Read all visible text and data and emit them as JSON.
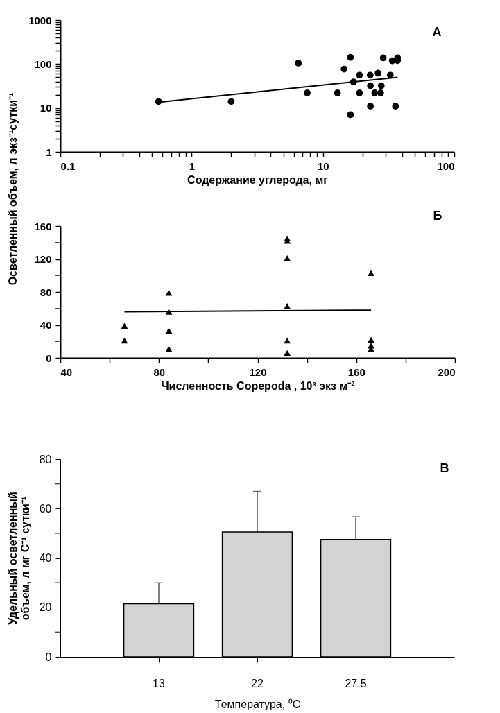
{
  "chart_data": [
    {
      "type": "scatter",
      "xlabel": "Содержание углерода, мг",
      "ylabel": "Осветленный объем, л экз⁻¹сутки⁻¹",
      "annotations": [
        "А"
      ],
      "log": "xy",
      "marker": "circle",
      "xlim": [
        0.1,
        100
      ],
      "ylim": [
        1,
        1000
      ],
      "xticks": [
        0.1,
        {
          "value": 0.2,
          "label": null
        },
        {
          "value": 0.3,
          "label": null
        },
        {
          "value": 0.4,
          "label": null
        },
        {
          "value": 0.5,
          "label": null
        },
        {
          "value": 0.6,
          "label": null
        },
        {
          "value": 0.7,
          "label": null
        },
        {
          "value": 0.8,
          "label": null
        },
        {
          "value": 0.9,
          "label": null
        },
        1,
        {
          "value": 2,
          "label": null
        },
        {
          "value": 3,
          "label": null
        },
        {
          "value": 4,
          "label": null
        },
        {
          "value": 5,
          "label": null
        },
        {
          "value": 6,
          "label": null
        },
        {
          "value": 7,
          "label": null
        },
        {
          "value": 8,
          "label": null
        },
        {
          "value": 9,
          "label": null
        },
        10,
        {
          "value": 20,
          "label": null
        },
        {
          "value": 30,
          "label": null
        },
        {
          "value": 40,
          "label": null
        },
        {
          "value": 50,
          "label": null
        },
        {
          "value": 60,
          "label": null
        },
        {
          "value": 70,
          "label": null
        },
        {
          "value": 80,
          "label": null
        },
        {
          "value": 90,
          "label": null
        },
        100
      ],
      "yticks": [
        1,
        {
          "value": 2,
          "label": null
        },
        {
          "value": 3,
          "label": null
        },
        {
          "value": 4,
          "label": null
        },
        {
          "value": 5,
          "label": null
        },
        {
          "value": 6,
          "label": null
        },
        {
          "value": 7,
          "label": null
        },
        {
          "value": 8,
          "label": null
        },
        {
          "value": 9,
          "label": null
        },
        10,
        {
          "value": 20,
          "label": null
        },
        {
          "value": 30,
          "label": null
        },
        {
          "value": 40,
          "label": null
        },
        {
          "value": 50,
          "label": null
        },
        {
          "value": 60,
          "label": null
        },
        {
          "value": 70,
          "label": null
        },
        {
          "value": 80,
          "label": null
        },
        {
          "value": 90,
          "label": null
        },
        100,
        {
          "value": 200,
          "label": null
        },
        {
          "value": 300,
          "label": null
        },
        {
          "value": 400,
          "label": null
        },
        {
          "value": 500,
          "label": null
        },
        {
          "value": 600,
          "label": null
        },
        {
          "value": 700,
          "label": null
        },
        {
          "value": 800,
          "label": null
        },
        {
          "value": 900,
          "label": null
        },
        1000
      ],
      "series": [
        {
          "color": "#000000",
          "x": [
            0.56,
            2.0,
            6.5,
            7.6,
            12.9,
            14.5,
            16.2,
            16.2,
            17.1,
            19.0,
            19.0,
            22.9,
            23.0,
            23.0,
            24.8,
            26.3,
            27.5,
            27.8,
            28.8,
            32.6,
            33.7,
            35.7,
            37,
            37
          ],
          "values": [
            14,
            14,
            105,
            22,
            22,
            77,
            142,
            7,
            39,
            56,
            22,
            56,
            32,
            11,
            22,
            62,
            22,
            32,
            138,
            56,
            119,
            11,
            138,
            120
          ]
        },
        {
          "type": "line",
          "marker": "none",
          "line_style": "solid",
          "color": "#000000",
          "x": [
            0.56,
            37
          ],
          "values": [
            13.5,
            50
          ]
        }
      ]
    },
    {
      "type": "scatter",
      "xlabel": "Численность Copepoda , 10³ экз м⁻²",
      "annotations": [
        "Б"
      ],
      "marker": "triangle",
      "xlim": [
        40,
        200
      ],
      "ylim": [
        0,
        160
      ],
      "xticks": [
        40,
        {
          "value": 60,
          "label": null
        },
        80,
        {
          "value": 100,
          "label": null
        },
        120,
        {
          "value": 140,
          "label": null
        },
        160,
        {
          "value": 180,
          "label": null
        },
        200
      ],
      "yticks": [
        0,
        {
          "value": 20,
          "label": null
        },
        40,
        {
          "value": 60,
          "label": null
        },
        80,
        {
          "value": 100,
          "label": null
        },
        120,
        {
          "value": 140,
          "label": null
        },
        160
      ],
      "series": [
        {
          "color": "#000000",
          "x": [
            66,
            66,
            84,
            84,
            84,
            84,
            132,
            132,
            132,
            132,
            132,
            132,
            166,
            166,
            166,
            166
          ],
          "values": [
            39,
            21,
            79,
            56,
            33,
            11,
            145,
            142,
            121,
            63,
            21,
            6,
            103,
            22,
            15,
            11
          ]
        },
        {
          "type": "line",
          "marker": "none",
          "line_style": "solid",
          "color": "#000000",
          "x": [
            66,
            166
          ],
          "values": [
            56,
            58
          ]
        }
      ]
    },
    {
      "type": "bar",
      "xlabel": "Температура, ⁰C",
      "ylabel": "Удельный осветленный объем, л мг C⁻¹ сутки⁻¹",
      "annotations": [
        "В"
      ],
      "categories": [
        "13",
        "22",
        "27.5"
      ],
      "values": [
        21.5,
        50.5,
        47.5
      ],
      "errors": [
        [
          21.5,
          30
        ],
        [
          50.5,
          67
        ],
        [
          47.5,
          56.7
        ]
      ],
      "color": "#d3d3d3",
      "ylim": [
        0,
        80
      ],
      "yticks": [
        0,
        {
          "value": 10,
          "label": null
        },
        20,
        {
          "value": 30,
          "label": null
        },
        40,
        {
          "value": 50,
          "label": null
        },
        60,
        {
          "value": 70,
          "label": null
        },
        80
      ]
    }
  ]
}
